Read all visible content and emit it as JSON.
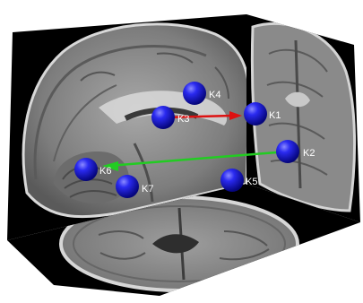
{
  "figure": {
    "nodes": [
      {
        "id": "K1",
        "label": "K1",
        "color": "#1515e0"
      },
      {
        "id": "K2",
        "label": "K2",
        "color": "#1515e0"
      },
      {
        "id": "K3",
        "label": "K3",
        "color": "#1515e0"
      },
      {
        "id": "K4",
        "label": "K4",
        "color": "#1515e0"
      },
      {
        "id": "K5",
        "label": "K5",
        "color": "#1515e0"
      },
      {
        "id": "K6",
        "label": "K6",
        "color": "#1515e0"
      },
      {
        "id": "K7",
        "label": "K7",
        "color": "#1515e0"
      }
    ],
    "connections": [
      {
        "from": "K3",
        "to": "K1",
        "color": "#dd1111"
      },
      {
        "from": "K2",
        "to": "K6",
        "color": "#22cc22"
      }
    ],
    "panels": [
      "sagittal-mri-slice",
      "coronal-mri-slice",
      "axial-mri-slice"
    ],
    "colors": {
      "background": "#000000",
      "tissue": "#8c8c8c"
    }
  }
}
